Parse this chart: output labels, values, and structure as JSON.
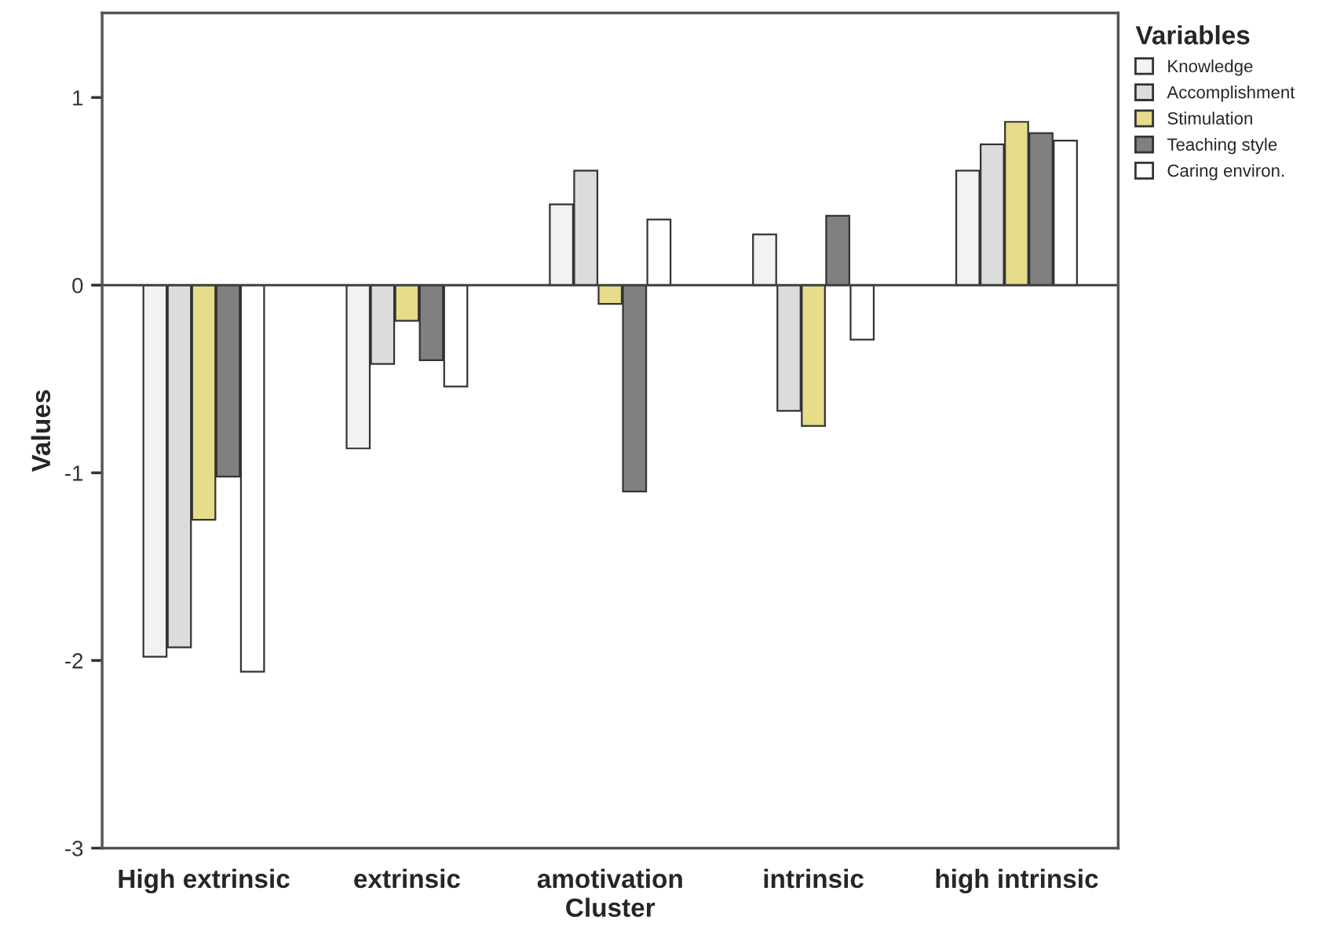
{
  "chart_data": {
    "type": "bar",
    "xlabel": "Cluster",
    "ylabel": "Values",
    "legend_title": "Variables",
    "categories": [
      "High extrinsic",
      "extrinsic",
      "amotivation",
      "intrinsic",
      "high intrinsic"
    ],
    "series": [
      {
        "name": "Knowledge",
        "color": "#f2f2f2",
        "values": [
          -1.98,
          -0.87,
          0.43,
          0.27,
          0.61
        ]
      },
      {
        "name": "Accomplishment",
        "color": "#dcdcdc",
        "values": [
          -1.93,
          -0.42,
          0.61,
          -0.67,
          0.75
        ]
      },
      {
        "name": "Stimulation",
        "color": "#e6dc8a",
        "values": [
          -1.25,
          -0.19,
          -0.1,
          -0.75,
          0.87
        ]
      },
      {
        "name": "Teaching style",
        "color": "#808080",
        "values": [
          -1.02,
          -0.4,
          -1.1,
          0.37,
          0.81
        ]
      },
      {
        "name": "Caring environ.",
        "color": "#ffffff",
        "values": [
          -2.06,
          -0.54,
          0.35,
          -0.29,
          0.77
        ]
      }
    ],
    "ylim": [
      -3,
      1.45
    ],
    "yticks": [
      -3,
      -2,
      -1,
      0,
      1
    ],
    "ref_lines": [
      {
        "axis": "y",
        "value": 0,
        "color": "#404040"
      }
    ],
    "grid": false,
    "legend": "top right"
  }
}
